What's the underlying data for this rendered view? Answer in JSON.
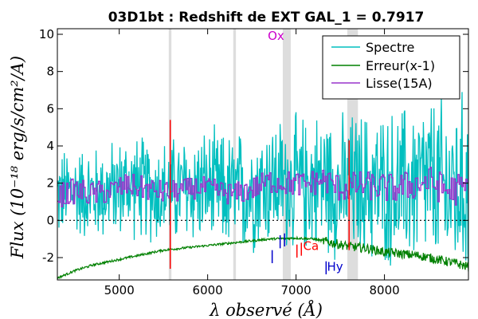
{
  "chart_data": {
    "type": "line",
    "title": "03D1bt : Redshift de EXT GAL_1 = 0.7917",
    "xlabel": "λ observé (Å)",
    "ylabel": "Flux (10⁻¹⁸ erg/s/cm²/A)",
    "xlim": [
      4300,
      8950
    ],
    "ylim": [
      -3.2,
      10.3
    ],
    "x_ticks": [
      5000,
      6000,
      7000,
      8000
    ],
    "x_tick_labels": [
      "5000",
      "6000",
      "7000",
      "8000"
    ],
    "y_ticks": [
      -2,
      0,
      2,
      4,
      6,
      8,
      10
    ],
    "y_tick_labels": [
      "-2",
      "0",
      "2",
      "4",
      "6",
      "8",
      "10"
    ],
    "zero_line": 0,
    "grid": false,
    "legend_position": "top-right",
    "shaded_bands": [
      {
        "from": 5560,
        "to": 5590,
        "color": "#dddddd"
      },
      {
        "from": 6290,
        "to": 6320,
        "color": "#dddddd"
      },
      {
        "from": 6850,
        "to": 6940,
        "color": "#dddddd"
      },
      {
        "from": 7580,
        "to": 7700,
        "color": "#dddddd"
      }
    ],
    "series": [
      {
        "name": "Spectre",
        "color": "#00bfbf",
        "x": [
          4300,
          4500,
          4700,
          4900,
          5100,
          5300,
          5500,
          5700,
          5900,
          6100,
          6300,
          6500,
          6700,
          6900,
          7100,
          7300,
          7500,
          7700,
          7900,
          8100,
          8300,
          8500,
          8700,
          8900
        ],
        "y": [
          1.3,
          1.6,
          1.4,
          1.6,
          1.9,
          1.7,
          1.5,
          1.6,
          1.8,
          1.6,
          1.4,
          1.7,
          2.1,
          2.0,
          1.9,
          2.2,
          1.7,
          1.9,
          1.8,
          1.7,
          1.9,
          2.1,
          1.6,
          1.7
        ],
        "noise_envelope": {
          "x": [
            4300,
            5000,
            5500,
            6000,
            6500,
            7000,
            7500,
            8000,
            8500,
            8900
          ],
          "y": [
            2.0,
            2.2,
            2.4,
            2.6,
            2.8,
            3.0,
            3.2,
            3.4,
            3.8,
            4.2
          ]
        }
      },
      {
        "name": "Erreur(x-1)",
        "color": "#008000",
        "x": [
          4300,
          4500,
          4700,
          5000,
          5300,
          5500,
          5800,
          6100,
          6400,
          6700,
          7000,
          7200,
          7400,
          7600,
          7800,
          8000,
          8200,
          8400,
          8600,
          8800,
          8950
        ],
        "y": [
          -3.1,
          -2.7,
          -2.4,
          -2.1,
          -1.8,
          -1.6,
          -1.45,
          -1.3,
          -1.15,
          -1.0,
          -0.95,
          -1.0,
          -1.2,
          -1.4,
          -1.5,
          -1.7,
          -1.8,
          -1.9,
          -2.1,
          -2.3,
          -2.5
        ]
      },
      {
        "name": "Lisse(15A)",
        "color": "#9933cc",
        "x": [
          4300,
          4500,
          4700,
          4900,
          5100,
          5300,
          5500,
          5700,
          5900,
          6100,
          6300,
          6500,
          6700,
          6900,
          7100,
          7300,
          7500,
          7700,
          7900,
          8100,
          8300,
          8500,
          8700,
          8900
        ],
        "y": [
          1.3,
          1.6,
          1.4,
          1.6,
          1.9,
          1.7,
          1.5,
          1.6,
          1.8,
          1.6,
          1.4,
          1.7,
          2.1,
          2.0,
          1.9,
          2.2,
          1.7,
          1.9,
          1.8,
          1.7,
          1.9,
          2.1,
          1.6,
          1.7
        ],
        "noise_envelope": {
          "x": [
            4300,
            6000,
            7000,
            8000,
            8900
          ],
          "y": [
            0.7,
            0.6,
            0.7,
            0.8,
            0.9
          ]
        }
      }
    ],
    "sky_lines": [
      {
        "x": 5577,
        "y_from": -2.6,
        "y_to": 5.4,
        "color": "#ff0000"
      },
      {
        "x": 7600,
        "y_from": -1.6,
        "y_to": 4.3,
        "color": "#ff0000"
      }
    ],
    "annotations": [
      {
        "text": "Ox",
        "x": 6680,
        "y": 9.7,
        "color": "#cc00cc"
      },
      {
        "text": "Ca",
        "x": 7080,
        "y": -1.6,
        "color": "#ff0000"
      },
      {
        "text": "Hy",
        "x": 7350,
        "y": -2.7,
        "color": "#0000cc"
      }
    ],
    "line_markers": [
      {
        "x": 6730,
        "y_from": -2.3,
        "y_to": -1.6,
        "color": "#0000cc"
      },
      {
        "x": 6820,
        "y_from": -1.5,
        "y_to": -0.8,
        "color": "#0000cc"
      },
      {
        "x": 6870,
        "y_from": -1.4,
        "y_to": -0.7,
        "color": "#0000cc"
      },
      {
        "x": 7010,
        "y_from": -2.0,
        "y_to": -1.3,
        "color": "#ff0000"
      },
      {
        "x": 7060,
        "y_from": -1.9,
        "y_to": -1.2,
        "color": "#ff0000"
      },
      {
        "x": 7340,
        "y_from": -2.9,
        "y_to": -2.2,
        "color": "#0000cc"
      }
    ]
  }
}
